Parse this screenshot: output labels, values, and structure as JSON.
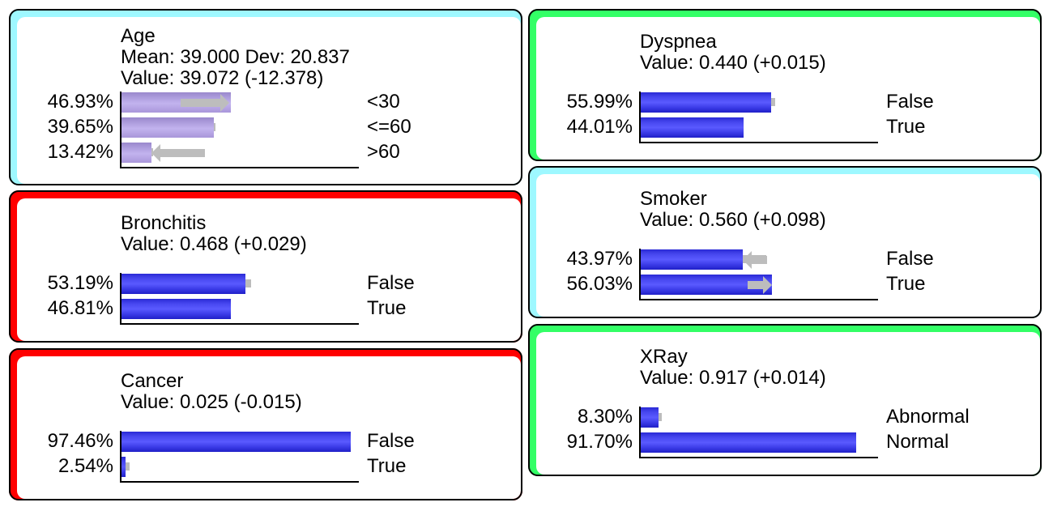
{
  "nodes": {
    "age": {
      "name": "Age",
      "mean_line": "Mean: 39.000 Dev: 20.837",
      "value_line": "Value: 39.072 (-12.378)",
      "border_color": "#9ef8ff",
      "states": [
        {
          "pct": "46.93%",
          "label": "<30",
          "prob": 0.4693,
          "prior": 0.4693
        },
        {
          "pct": "39.65%",
          "label": "<=60",
          "prob": 0.3965,
          "prior": 0.405
        },
        {
          "pct": "13.42%",
          "label": ">60",
          "prob": 0.1342,
          "prior": 0.14
        }
      ]
    },
    "bronchitis": {
      "name": "Bronchitis",
      "value_line": "Value: 0.468 (+0.029)",
      "border_color": "#ff0000",
      "states": [
        {
          "pct": "53.19%",
          "label": "False",
          "prob": 0.5319,
          "prior": 0.556
        },
        {
          "pct": "46.81%",
          "label": "True",
          "prob": 0.4681,
          "prior": 0.448
        }
      ]
    },
    "cancer": {
      "name": "Cancer",
      "value_line": "Value: 0.025 (-0.015)",
      "border_color": "#ff0000",
      "states": [
        {
          "pct": "97.46%",
          "label": "False",
          "prob": 0.9746,
          "prior": 0.96
        },
        {
          "pct": "2.54%",
          "label": "True",
          "prob": 0.0254,
          "prior": 0.04
        }
      ]
    },
    "dyspnea": {
      "name": "Dyspnea",
      "value_line": "Value: 0.440 (+0.015)",
      "border_color": "#33ff66",
      "states": [
        {
          "pct": "55.99%",
          "label": "False",
          "prob": 0.5599,
          "prior": 0.575
        },
        {
          "pct": "44.01%",
          "label": "True",
          "prob": 0.4401,
          "prior": 0.425
        }
      ]
    },
    "smoker": {
      "name": "Smoker",
      "value_line": "Value: 0.560 (+0.098)",
      "border_color": "#9ef8ff",
      "states": [
        {
          "pct": "43.97%",
          "label": "False",
          "prob": 0.4397,
          "prior": 0.538,
          "arrow": "left"
        },
        {
          "pct": "56.03%",
          "label": "True",
          "prob": 0.5603,
          "prior": 0.462,
          "arrow": "right"
        }
      ]
    },
    "xray": {
      "name": "XRay",
      "value_line": "Value: 0.917 (+0.014)",
      "border_color": "#33ff66",
      "states": [
        {
          "pct": "8.30%",
          "label": "Abnormal",
          "prob": 0.083,
          "prior": 0.097
        },
        {
          "pct": "91.70%",
          "label": "Normal",
          "prob": 0.917,
          "prior": 0.903
        }
      ]
    }
  }
}
